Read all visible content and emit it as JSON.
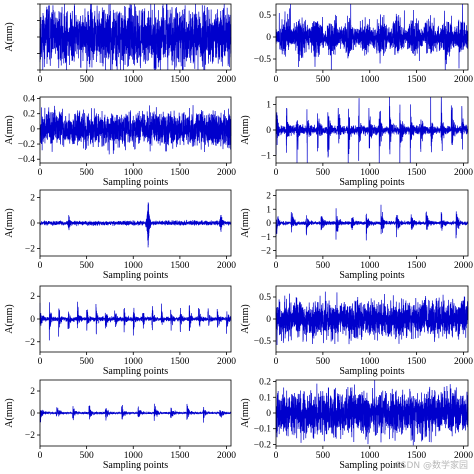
{
  "watermark": "CSDN @数学家园",
  "chart_data": [
    {
      "type": "line",
      "panel": "row1-left",
      "xlabel": "",
      "ylabel": "A(mm)",
      "xlim": [
        0,
        2048
      ],
      "ylim": [
        -1,
        1
      ],
      "xticks": [
        0,
        500,
        1000,
        1500,
        2000
      ],
      "yticks": [
        -1,
        -0.5,
        0,
        0.5,
        1
      ],
      "ytick_labels": [],
      "color": "#0000cc",
      "signal": {
        "n": 2048,
        "amplitude": 0.6,
        "style": "noise",
        "seed": 11
      },
      "grid": false
    },
    {
      "type": "line",
      "panel": "row1-right",
      "xlabel": "",
      "ylabel": "",
      "xlim": [
        0,
        2048
      ],
      "ylim": [
        -0.75,
        0.75
      ],
      "xticks": [
        0,
        500,
        1000,
        1500,
        2000
      ],
      "yticks": [
        -0.5,
        0,
        0.5
      ],
      "ytick_labels": [
        "−0.5",
        "0",
        "0.5"
      ],
      "color": "#0000cc",
      "signal": {
        "n": 2048,
        "amplitude": 0.35,
        "style": "bursty",
        "seed": 23
      },
      "grid": false
    },
    {
      "type": "line",
      "panel": "row2-left",
      "xlabel": "Sampling points",
      "ylabel": "A(mm)",
      "xlim": [
        0,
        2048
      ],
      "ylim": [
        -0.45,
        0.42
      ],
      "xticks": [
        0,
        500,
        1000,
        1500,
        2000
      ],
      "yticks": [
        -0.4,
        -0.2,
        0,
        0.2,
        0.4
      ],
      "ytick_labels": [
        "−0.4",
        "−0.2",
        "0",
        "0.2",
        "0.4"
      ],
      "color": "#0000cc",
      "signal": {
        "n": 2048,
        "amplitude": 0.16,
        "style": "noise",
        "seed": 37
      },
      "grid": false
    },
    {
      "type": "line",
      "panel": "row2-right",
      "xlabel": "Sampling points",
      "ylabel": "A(mm)",
      "xlim": [
        0,
        2048
      ],
      "ylim": [
        -1.3,
        1.3
      ],
      "xticks": [
        0,
        500,
        1000,
        1500,
        2000
      ],
      "yticks": [
        -1,
        0,
        1
      ],
      "ytick_labels": [
        "−1",
        "0",
        "1"
      ],
      "color": "#0000cc",
      "signal": {
        "n": 2048,
        "amplitude": 0.45,
        "style": "impulsive",
        "period": 110,
        "seed": 41
      },
      "grid": false
    },
    {
      "type": "line",
      "panel": "row3-left",
      "xlabel": "Sampling points",
      "ylabel": "A(mm)",
      "xlim": [
        0,
        2048
      ],
      "ylim": [
        -2.6,
        2.6
      ],
      "xticks": [
        0,
        500,
        1000,
        1500,
        2000
      ],
      "yticks": [
        -2,
        0,
        2
      ],
      "ytick_labels": [
        "−2",
        "0",
        "2"
      ],
      "color": "#0000cc",
      "signal": {
        "n": 2048,
        "amplitude": 0.12,
        "style": "sparse",
        "spikes": [
          [
            310,
            0.6
          ],
          [
            1160,
            2.2
          ],
          [
            1940,
            0.8
          ]
        ],
        "seed": 53
      },
      "grid": false
    },
    {
      "type": "line",
      "panel": "row3-right",
      "xlabel": "Sampling points",
      "ylabel": "A(mm)",
      "xlim": [
        0,
        2048
      ],
      "ylim": [
        -2.4,
        2.4
      ],
      "xticks": [
        0,
        500,
        1000,
        1500,
        2000
      ],
      "yticks": [
        -2,
        -1,
        0,
        1,
        2
      ],
      "ytick_labels": [
        "−2",
        "−1",
        "0",
        "1",
        "2"
      ],
      "color": "#0000cc",
      "signal": {
        "n": 2048,
        "amplitude": 0.35,
        "style": "impulsive",
        "period": 160,
        "seed": 67
      },
      "grid": false
    },
    {
      "type": "line",
      "panel": "row4-left",
      "xlabel": "Sampling points",
      "ylabel": "A(mm)",
      "xlim": [
        0,
        2048
      ],
      "ylim": [
        -2.9,
        2.9
      ],
      "xticks": [
        0,
        500,
        1000,
        1500,
        2000
      ],
      "yticks": [
        -2,
        0,
        2
      ],
      "ytick_labels": [
        "−2",
        "0",
        "2"
      ],
      "color": "#0000cc",
      "signal": {
        "n": 2048,
        "amplitude": 0.5,
        "style": "impulsive",
        "period": 100,
        "seed": 71
      },
      "grid": false
    },
    {
      "type": "line",
      "panel": "row4-right",
      "xlabel": "Sampling points",
      "ylabel": "A(mm)",
      "xlim": [
        0,
        2048
      ],
      "ylim": [
        -0.75,
        0.75
      ],
      "xticks": [
        0,
        500,
        1000,
        1500,
        2000
      ],
      "yticks": [
        -0.5,
        0,
        0.5
      ],
      "ytick_labels": [
        "−0.5",
        "0",
        "0.5"
      ],
      "color": "#0000cc",
      "signal": {
        "n": 2048,
        "amplitude": 0.3,
        "style": "noise",
        "seed": 83
      },
      "grid": false
    },
    {
      "type": "line",
      "panel": "row5-left",
      "xlabel": "Sampling points",
      "ylabel": "A(mm)",
      "xlim": [
        0,
        2048
      ],
      "ylim": [
        -3,
        3
      ],
      "xticks": [
        0,
        500,
        1000,
        1500,
        2000
      ],
      "yticks": [
        -2,
        0,
        2
      ],
      "ytick_labels": [
        "−2",
        "0",
        "2"
      ],
      "color": "#0000cc",
      "signal": {
        "n": 2048,
        "amplitude": 0.25,
        "style": "impulsive",
        "period": 175,
        "seed": 97
      },
      "grid": false
    },
    {
      "type": "line",
      "panel": "row5-right",
      "xlabel": "Sampling points",
      "ylabel": "A(mm)",
      "xlim": [
        0,
        2048
      ],
      "ylim": [
        -0.21,
        0.21
      ],
      "xticks": [
        0,
        500,
        1000,
        1500,
        2000
      ],
      "yticks": [
        -0.2,
        -0.1,
        0,
        0.1,
        0.2
      ],
      "ytick_labels": [
        "−0.2",
        "−0.1",
        "0",
        "0.1",
        "0.2"
      ],
      "color": "#0000cc",
      "signal": {
        "n": 2048,
        "amplitude": 0.1,
        "style": "noise",
        "seed": 101
      },
      "grid": false
    }
  ]
}
